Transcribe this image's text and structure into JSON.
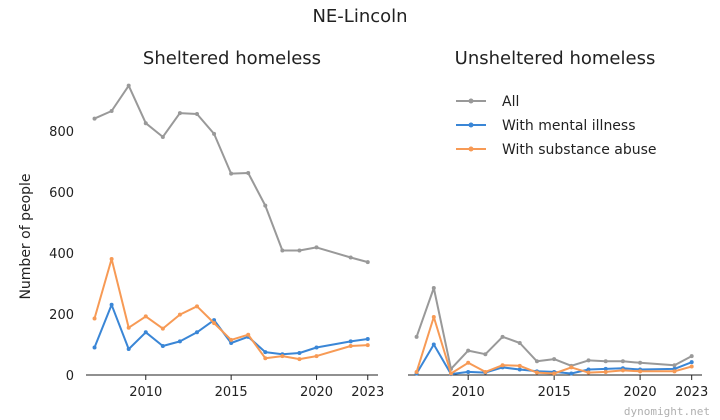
{
  "figure": {
    "suptitle": "NE-Lincoln",
    "watermark": "dynomight.net"
  },
  "chart_data": [
    {
      "type": "line",
      "title": "Sheltered homeless",
      "xlabel": "",
      "ylabel": "Number of people",
      "xlim": [
        2006.5,
        2023.6
      ],
      "ylim": [
        0,
        960
      ],
      "xticks": [
        2010,
        2015,
        2020,
        2023
      ],
      "yticks": [
        0,
        200,
        400,
        600,
        800
      ],
      "grid": false,
      "x": [
        2007,
        2008,
        2009,
        2010,
        2011,
        2012,
        2013,
        2014,
        2015,
        2016,
        2017,
        2018,
        2019,
        2020,
        2022,
        2023
      ],
      "series": [
        {
          "name": "All",
          "color": "#999999",
          "values": [
            840,
            865,
            948,
            825,
            780,
            858,
            855,
            790,
            660,
            662,
            555,
            408,
            408,
            418,
            385,
            370
          ]
        },
        {
          "name": "With mental illness",
          "color": "#3a86d6",
          "values": [
            90,
            230,
            85,
            140,
            95,
            110,
            140,
            180,
            105,
            125,
            75,
            68,
            72,
            90,
            110,
            118
          ]
        },
        {
          "name": "With substance abuse",
          "color": "#f79a55",
          "values": [
            185,
            380,
            155,
            192,
            152,
            198,
            225,
            170,
            115,
            132,
            55,
            62,
            52,
            62,
            95,
            98
          ]
        }
      ]
    },
    {
      "type": "line",
      "title": "Unsheltered homeless",
      "xlabel": "",
      "ylabel": "",
      "xlim": [
        2006.5,
        2023.6
      ],
      "ylim": [
        0,
        960
      ],
      "xticks": [
        2010,
        2015,
        2020,
        2023
      ],
      "grid": false,
      "legend": "top-right",
      "x": [
        2007,
        2008,
        2009,
        2010,
        2011,
        2012,
        2013,
        2014,
        2015,
        2016,
        2017,
        2018,
        2019,
        2020,
        2022,
        2023
      ],
      "series": [
        {
          "name": "All",
          "color": "#999999",
          "values": [
            125,
            285,
            20,
            80,
            68,
            125,
            105,
            45,
            52,
            30,
            48,
            45,
            45,
            40,
            32,
            62
          ]
        },
        {
          "name": "With mental illness",
          "color": "#3a86d6",
          "values": [
            5,
            100,
            3,
            10,
            8,
            25,
            18,
            12,
            10,
            5,
            18,
            20,
            22,
            18,
            20,
            42
          ]
        },
        {
          "name": "With substance abuse",
          "color": "#f79a55",
          "values": [
            10,
            190,
            5,
            40,
            10,
            32,
            30,
            8,
            5,
            25,
            8,
            10,
            15,
            12,
            12,
            28
          ]
        }
      ]
    }
  ]
}
